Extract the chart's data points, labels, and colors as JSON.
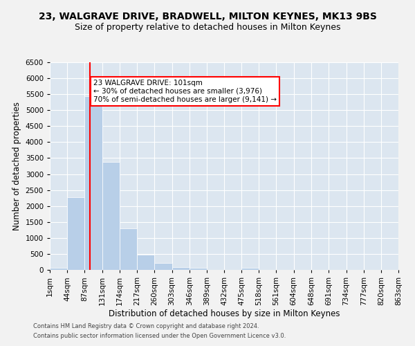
{
  "title1": "23, WALGRAVE DRIVE, BRADWELL, MILTON KEYNES, MK13 9BS",
  "title2": "Size of property relative to detached houses in Milton Keynes",
  "xlabel": "Distribution of detached houses by size in Milton Keynes",
  "ylabel": "Number of detached properties",
  "footer1": "Contains HM Land Registry data © Crown copyright and database right 2024.",
  "footer2": "Contains public sector information licensed under the Open Government Licence v3.0.",
  "annotation_line1": "23 WALGRAVE DRIVE: 101sqm",
  "annotation_line2": "← 30% of detached houses are smaller (3,976)",
  "annotation_line3": "70% of semi-detached houses are larger (9,141) →",
  "bar_edges": [
    1,
    44,
    87,
    131,
    174,
    217,
    260,
    303,
    346,
    389,
    432,
    475,
    518,
    561,
    604,
    648,
    691,
    734,
    777,
    820,
    863
  ],
  "bar_heights": [
    75,
    2280,
    5430,
    3380,
    1300,
    470,
    215,
    90,
    55,
    10,
    5,
    55,
    0,
    0,
    0,
    0,
    0,
    0,
    0,
    0
  ],
  "bar_color": "#b8cfe8",
  "redline_x": 101,
  "ylim": [
    0,
    6500
  ],
  "yticks": [
    0,
    500,
    1000,
    1500,
    2000,
    2500,
    3000,
    3500,
    4000,
    4500,
    5000,
    5500,
    6000,
    6500
  ],
  "xtick_labels": [
    "1sqm",
    "44sqm",
    "87sqm",
    "131sqm",
    "174sqm",
    "217sqm",
    "260sqm",
    "303sqm",
    "346sqm",
    "389sqm",
    "432sqm",
    "475sqm",
    "518sqm",
    "561sqm",
    "604sqm",
    "648sqm",
    "691sqm",
    "734sqm",
    "777sqm",
    "820sqm",
    "863sqm"
  ],
  "bg_color": "#dce6f0",
  "grid_color": "#ffffff",
  "fig_bg_color": "#f2f2f2",
  "title_fontsize": 10,
  "subtitle_fontsize": 9,
  "axis_label_fontsize": 8.5,
  "tick_fontsize": 7.5,
  "annotation_fontsize": 7.5,
  "footer_fontsize": 6
}
